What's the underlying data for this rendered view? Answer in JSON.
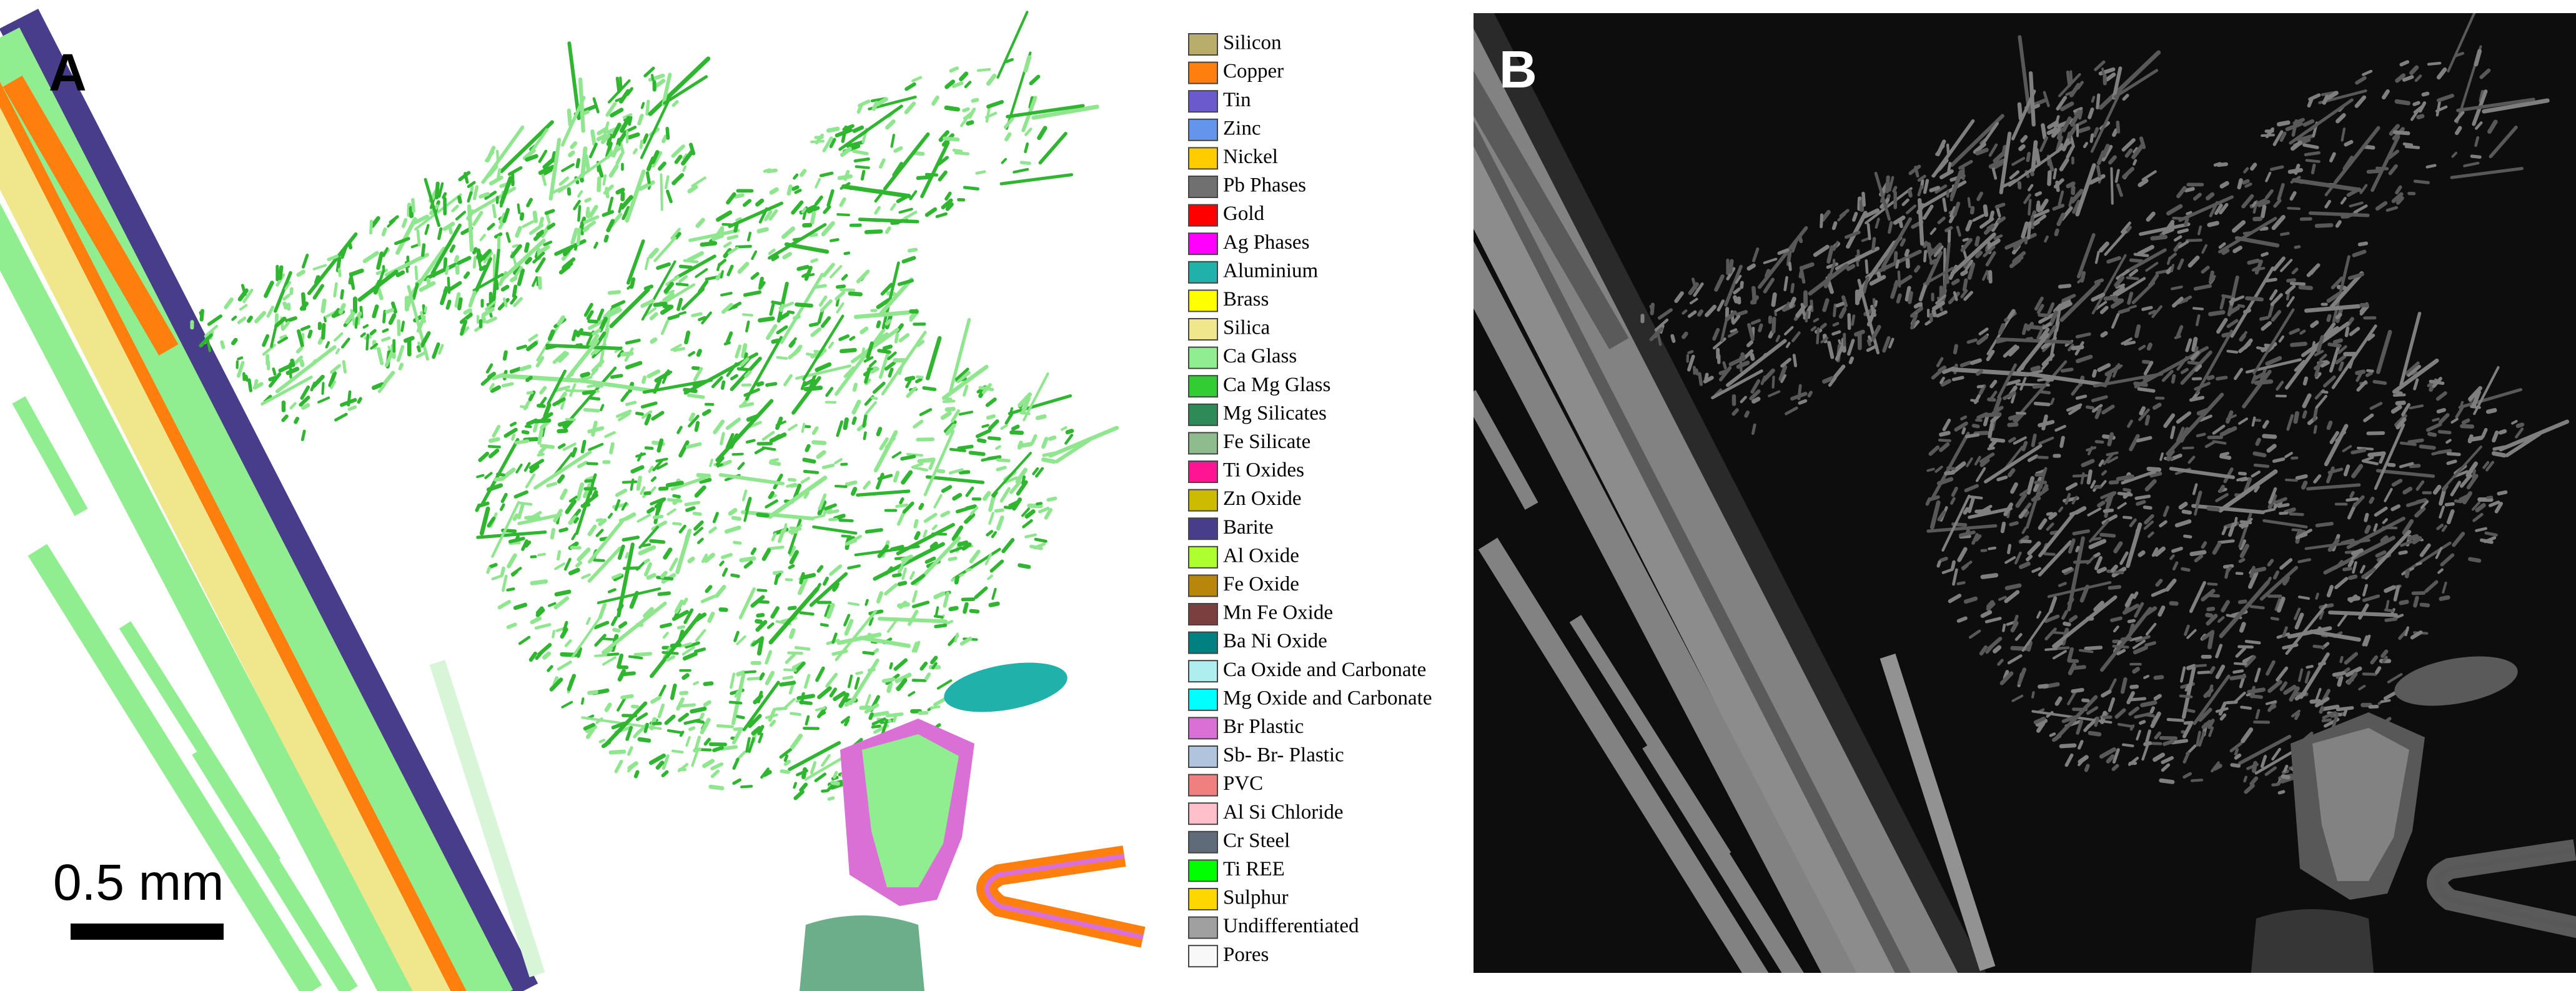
{
  "panels": {
    "a": {
      "label": "A",
      "scale_bar": "0.5 mm"
    },
    "b": {
      "label": "B"
    }
  },
  "legend": {
    "items": [
      {
        "name": "Silicon",
        "color": "#b8ad6a"
      },
      {
        "name": "Copper",
        "color": "#ff7f0e"
      },
      {
        "name": "Tin",
        "color": "#6a5acd"
      },
      {
        "name": "Zinc",
        "color": "#6495ed"
      },
      {
        "name": "Nickel",
        "color": "#ffcc00"
      },
      {
        "name": "Pb Phases",
        "color": "#707070"
      },
      {
        "name": "Gold",
        "color": "#ff0000"
      },
      {
        "name": "Ag Phases",
        "color": "#ff00ff"
      },
      {
        "name": "Aluminium",
        "color": "#20b2aa"
      },
      {
        "name": "Brass",
        "color": "#ffff00"
      },
      {
        "name": "Silica",
        "color": "#f0e68c"
      },
      {
        "name": "Ca Glass",
        "color": "#90ee90"
      },
      {
        "name": "Ca Mg Glass",
        "color": "#32cd32"
      },
      {
        "name": "Mg Silicates",
        "color": "#2e8b57"
      },
      {
        "name": "Fe Silicate",
        "color": "#8fbc8f"
      },
      {
        "name": "Ti Oxides",
        "color": "#ff1493"
      },
      {
        "name": "Zn Oxide",
        "color": "#ccbb00"
      },
      {
        "name": "Barite",
        "color": "#483d8b"
      },
      {
        "name": "Al Oxide",
        "color": "#adff2f"
      },
      {
        "name": "Fe Oxide",
        "color": "#b8860b"
      },
      {
        "name": "Mn Fe Oxide",
        "color": "#7b3f3f"
      },
      {
        "name": "Ba Ni Oxide",
        "color": "#008080"
      },
      {
        "name": "Ca Oxide and Carbonate",
        "color": "#afeeee"
      },
      {
        "name": "Mg Oxide and Carbonate",
        "color": "#00ffff"
      },
      {
        "name": "Br Plastic",
        "color": "#da70d6"
      },
      {
        "name": "Sb- Br- Plastic",
        "color": "#b0c4de"
      },
      {
        "name": "PVC",
        "color": "#f08080"
      },
      {
        "name": "Al Si Chloride",
        "color": "#ffc0cb"
      },
      {
        "name": "Cr Steel",
        "color": "#5f6b78"
      },
      {
        "name": "Ti REE",
        "color": "#00ff00"
      },
      {
        "name": "Sulphur",
        "color": "#ffd700"
      },
      {
        "name": "Undifferentiated",
        "color": "#a0a0a0"
      },
      {
        "name": "Pores",
        "color": "#f8f8f8"
      }
    ]
  }
}
